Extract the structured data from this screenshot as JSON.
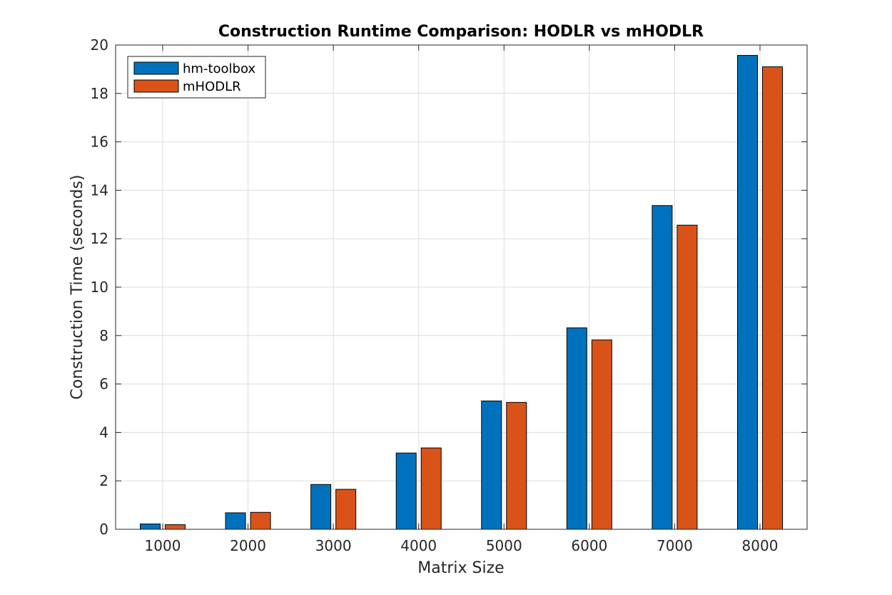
{
  "chart_data": {
    "type": "bar",
    "title": "Construction Runtime Comparison: HODLR vs mHODLR",
    "xlabel": "Matrix Size",
    "ylabel": "Construction Time (seconds)",
    "categories": [
      "1000",
      "2000",
      "3000",
      "4000",
      "5000",
      "6000",
      "7000",
      "8000"
    ],
    "series": [
      {
        "name": "hm-toolbox",
        "color": "#0072BD",
        "values": [
          0.22,
          0.68,
          1.85,
          3.15,
          5.3,
          8.32,
          13.37,
          19.57
        ]
      },
      {
        "name": "mHODLR",
        "color": "#D95319",
        "values": [
          0.19,
          0.7,
          1.65,
          3.36,
          5.24,
          7.82,
          12.56,
          19.1
        ]
      }
    ],
    "ylim": [
      0,
      20
    ],
    "yticks": [
      0,
      2,
      4,
      6,
      8,
      10,
      12,
      14,
      16,
      18,
      20
    ],
    "grid": true,
    "legend_position": "top-left"
  }
}
